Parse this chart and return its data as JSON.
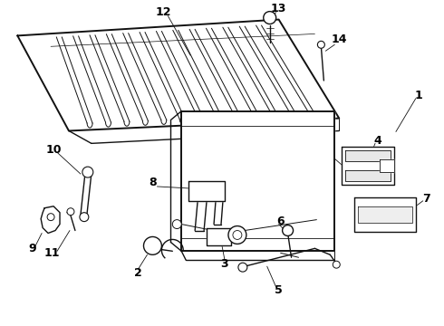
{
  "background_color": "#ffffff",
  "line_color": "#111111",
  "label_color": "#000000",
  "fig_width": 4.9,
  "fig_height": 3.6,
  "dpi": 100
}
